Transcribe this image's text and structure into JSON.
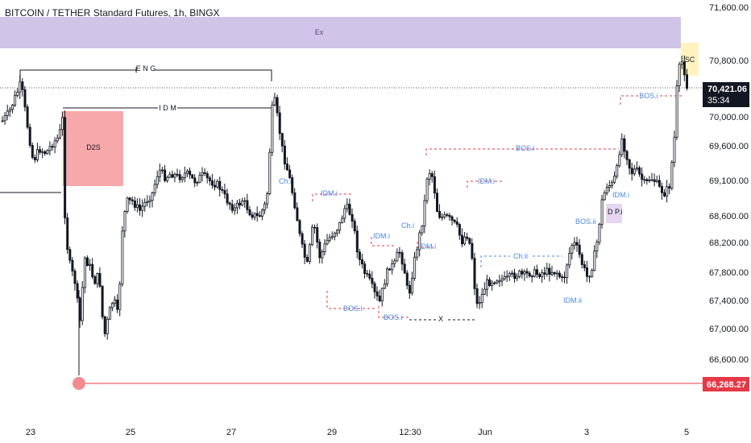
{
  "header": {
    "title": "BITCOIN / TETHER Standard Futures, 1h, BINGX"
  },
  "price_badge": {
    "price": "70,421.06",
    "countdown": "35:34"
  },
  "low_badge": {
    "price": "66,268.27"
  },
  "colors": {
    "bull": "#131722",
    "bear": "#131722",
    "bos": "#e53945",
    "choch": "#4a86e8",
    "zone_purple": "#d1c4e9",
    "zone_red": "#f7a8aa",
    "zone_yellow": "#fff3bf",
    "low_line": "#e53945"
  },
  "chart_data": {
    "type": "candlestick",
    "title": "BITCOIN / TETHER Standard Futures, 1h, BINGX",
    "y_ticks": [
      "71,600.00",
      "70,800.00",
      "70,000.00",
      "69,600.00",
      "69,100.00",
      "68,600.00",
      "68,200.00",
      "67,800.00",
      "67,400.00",
      "67,000.00",
      "66,600.00"
    ],
    "y_tick_values": [
      71600,
      70800,
      70000,
      69600,
      69100,
      68600,
      68200,
      67800,
      67400,
      67000,
      66600
    ],
    "x_ticks": [
      "23",
      "25",
      "27",
      "29",
      "12:30",
      "Jun",
      "3",
      "5"
    ],
    "annotations": [
      "E N G",
      "I D M",
      "D2S",
      "Ex",
      "SC",
      "Ch.i",
      "IDM.i",
      "BOS.i",
      "BOS.i",
      "Ch.i",
      "IDM.i",
      "IDM.i",
      "BOS.i",
      "X",
      "IDM.i",
      "Ch.ii",
      "BOS.ii",
      "IDM.ii",
      "IDM.i",
      "D P.i",
      "BOS.i"
    ],
    "current_price": 70421.06,
    "marked_low": 66268.27
  }
}
